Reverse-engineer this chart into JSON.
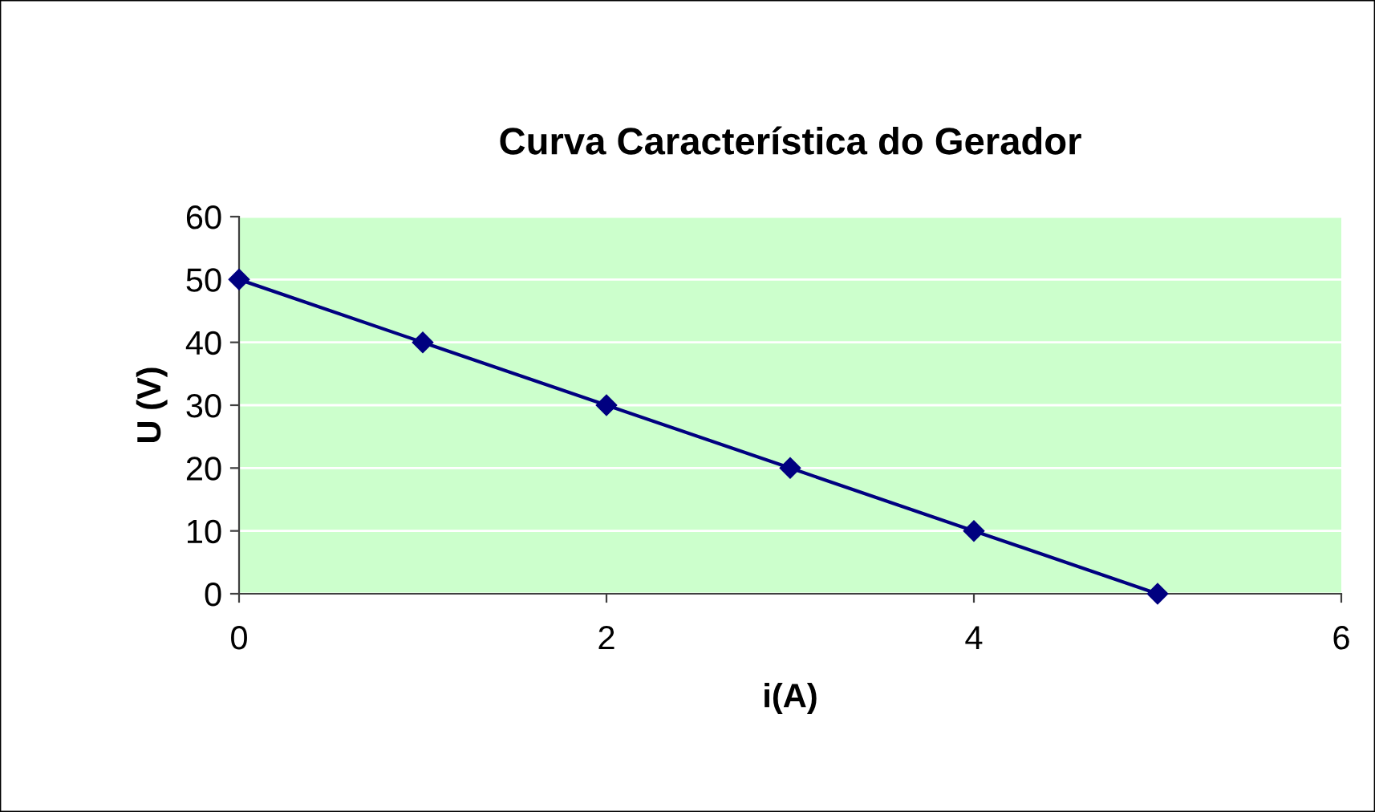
{
  "chart_data": {
    "type": "line",
    "title": "Curva Característica do Gerador",
    "xlabel": "i(A)",
    "ylabel": "U (V)",
    "x": [
      0,
      1,
      2,
      3,
      4,
      5
    ],
    "series": [
      {
        "color": "#000080",
        "values": [
          50,
          40,
          30,
          20,
          10,
          0
        ]
      }
    ],
    "xlim": [
      0,
      6
    ],
    "ylim": [
      0,
      60
    ],
    "xticks": [
      0,
      2,
      4,
      6
    ],
    "yticks": [
      0,
      10,
      20,
      30,
      40,
      50,
      60
    ],
    "grid": "y",
    "marker": "diamond",
    "line_style": "solid",
    "legend": false
  }
}
